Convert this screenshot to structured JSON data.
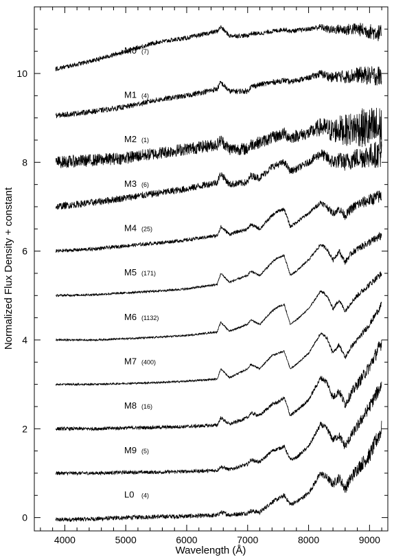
{
  "chart_data": {
    "type": "line",
    "title": "",
    "xlabel": "Wavelength (Å)",
    "ylabel": "Normalized Flux Density + constant",
    "xlim": [
      3500,
      9300
    ],
    "ylim": [
      -0.3,
      11.5
    ],
    "x_ticks": [
      4000,
      5000,
      6000,
      7000,
      8000,
      9000
    ],
    "y_ticks": [
      0,
      2,
      4,
      6,
      8,
      10
    ],
    "grid": false,
    "legend": "none",
    "line_color": "#000000",
    "series": [
      {
        "name": "L0",
        "count": "(4)",
        "offset": 0,
        "x": [
          3850,
          4500,
          5000,
          5500,
          6000,
          6500,
          6560,
          6700,
          7000,
          7050,
          7200,
          7400,
          7500,
          7600,
          7700,
          7800,
          8000,
          8200,
          8300,
          8400,
          8500,
          8600,
          8700,
          8800,
          9000,
          9200
        ],
        "values": [
          -0.05,
          -0.03,
          0.0,
          0.02,
          0.03,
          0.05,
          0.12,
          0.06,
          0.1,
          0.15,
          0.12,
          0.35,
          0.42,
          0.5,
          0.3,
          0.35,
          0.55,
          1.0,
          0.9,
          0.75,
          0.9,
          0.65,
          0.9,
          1.1,
          1.4,
          2.0
        ]
      },
      {
        "name": "M9",
        "count": "(5)",
        "offset": 1,
        "x": [
          3850,
          4500,
          5000,
          5500,
          6000,
          6500,
          6560,
          6700,
          7000,
          7050,
          7200,
          7400,
          7500,
          7600,
          7700,
          7800,
          8000,
          8200,
          8300,
          8400,
          8500,
          8600,
          8700,
          8800,
          9000,
          9200
        ],
        "values": [
          1.0,
          1.0,
          1.02,
          1.02,
          1.04,
          1.06,
          1.15,
          1.08,
          1.2,
          1.3,
          1.25,
          1.5,
          1.55,
          1.6,
          1.3,
          1.35,
          1.6,
          2.1,
          2.0,
          1.75,
          1.85,
          1.6,
          1.85,
          2.05,
          2.5,
          3.0
        ]
      },
      {
        "name": "M8",
        "count": "(16)",
        "offset": 2,
        "x": [
          3850,
          4500,
          5000,
          5500,
          6000,
          6500,
          6560,
          6700,
          7000,
          7050,
          7200,
          7400,
          7500,
          7600,
          7700,
          7800,
          8000,
          8200,
          8300,
          8400,
          8500,
          8600,
          8700,
          8800,
          9000,
          9200
        ],
        "values": [
          2.0,
          2.0,
          2.02,
          2.03,
          2.05,
          2.08,
          2.25,
          2.1,
          2.25,
          2.35,
          2.3,
          2.55,
          2.6,
          2.7,
          2.3,
          2.4,
          2.65,
          3.15,
          3.05,
          2.7,
          2.85,
          2.55,
          2.8,
          3.0,
          3.4,
          3.95
        ]
      },
      {
        "name": "M7",
        "count": "(400)",
        "offset": 3,
        "x": [
          3850,
          4500,
          5000,
          5500,
          6000,
          6500,
          6560,
          6700,
          7000,
          7050,
          7200,
          7400,
          7500,
          7600,
          7700,
          7800,
          8000,
          8200,
          8300,
          8400,
          8500,
          8600,
          8700,
          8800,
          9000,
          9200
        ],
        "values": [
          3.0,
          3.0,
          3.02,
          3.04,
          3.07,
          3.12,
          3.35,
          3.15,
          3.35,
          3.45,
          3.35,
          3.65,
          3.7,
          3.75,
          3.35,
          3.45,
          3.7,
          4.15,
          4.05,
          3.7,
          3.9,
          3.6,
          3.85,
          4.0,
          4.35,
          4.8
        ]
      },
      {
        "name": "M6",
        "count": "(1132)",
        "offset": 4,
        "x": [
          3850,
          4500,
          5000,
          5500,
          6000,
          6500,
          6560,
          6700,
          7000,
          7050,
          7200,
          7400,
          7500,
          7600,
          7700,
          7800,
          8000,
          8200,
          8300,
          8400,
          8500,
          8600,
          8700,
          8800,
          9000,
          9200
        ],
        "values": [
          4.0,
          4.0,
          4.03,
          4.06,
          4.1,
          4.18,
          4.4,
          4.2,
          4.35,
          4.45,
          4.35,
          4.65,
          4.75,
          4.8,
          4.35,
          4.45,
          4.7,
          5.1,
          5.0,
          4.7,
          4.9,
          4.65,
          4.85,
          5.0,
          5.25,
          5.5
        ]
      },
      {
        "name": "M5",
        "count": "(171)",
        "offset": 5,
        "x": [
          3850,
          4500,
          5000,
          5500,
          6000,
          6500,
          6560,
          6700,
          7000,
          7050,
          7200,
          7400,
          7500,
          7600,
          7700,
          7800,
          8000,
          8200,
          8300,
          8400,
          8500,
          8600,
          8700,
          8800,
          9000,
          9200
        ],
        "values": [
          5.0,
          5.02,
          5.06,
          5.1,
          5.15,
          5.25,
          5.5,
          5.3,
          5.45,
          5.55,
          5.45,
          5.75,
          5.85,
          5.9,
          5.45,
          5.55,
          5.8,
          6.15,
          6.05,
          5.8,
          6.0,
          5.75,
          5.95,
          6.05,
          6.2,
          6.35
        ]
      },
      {
        "name": "M4",
        "count": "(25)",
        "offset": 6,
        "x": [
          3850,
          4500,
          5000,
          5500,
          6000,
          6500,
          6560,
          6700,
          7000,
          7050,
          7200,
          7400,
          7500,
          7600,
          7700,
          7800,
          8000,
          8200,
          8300,
          8400,
          8500,
          8600,
          8700,
          8800,
          9000,
          9200
        ],
        "values": [
          6.0,
          6.05,
          6.12,
          6.18,
          6.25,
          6.35,
          6.55,
          6.38,
          6.5,
          6.6,
          6.5,
          6.8,
          6.9,
          6.95,
          6.55,
          6.65,
          6.85,
          7.1,
          7.0,
          6.85,
          6.95,
          6.8,
          6.95,
          7.05,
          7.15,
          7.25
        ]
      },
      {
        "name": "M3",
        "count": "(6)",
        "offset": 7,
        "x": [
          3850,
          4500,
          5000,
          5500,
          6000,
          6500,
          6560,
          6700,
          7000,
          7050,
          7200,
          7400,
          7500,
          7600,
          7700,
          7800,
          8000,
          8200,
          8300,
          8400,
          8500,
          8600,
          8700,
          8800,
          9000,
          9200
        ],
        "values": [
          7.0,
          7.1,
          7.2,
          7.3,
          7.4,
          7.55,
          7.75,
          7.5,
          7.55,
          7.7,
          7.65,
          7.9,
          7.95,
          8.0,
          7.8,
          7.85,
          8.0,
          8.2,
          8.1,
          8.0,
          8.05,
          8.0,
          8.05,
          8.1,
          8.15,
          8.2
        ]
      },
      {
        "name": "M2",
        "count": "(1)",
        "offset": 8,
        "x": [
          3850,
          4500,
          5000,
          5500,
          6000,
          6500,
          6560,
          6700,
          7000,
          7050,
          7200,
          7400,
          7500,
          7600,
          7700,
          7800,
          8000,
          8200,
          8300,
          8400,
          8500,
          8600,
          8700,
          8800,
          9000,
          9200
        ],
        "values": [
          8.0,
          8.05,
          8.1,
          8.2,
          8.3,
          8.4,
          8.5,
          8.3,
          8.3,
          8.4,
          8.45,
          8.55,
          8.6,
          8.65,
          8.55,
          8.6,
          8.65,
          8.8,
          8.75,
          8.7,
          8.75,
          8.72,
          8.75,
          8.78,
          8.75,
          8.75
        ]
      },
      {
        "name": "M1",
        "count": "(4)",
        "offset": 9,
        "x": [
          3850,
          4500,
          5000,
          5500,
          6000,
          6500,
          6560,
          6700,
          7000,
          7050,
          7200,
          7400,
          7500,
          7600,
          7700,
          7800,
          8000,
          8200,
          8300,
          8400,
          8500,
          8600,
          8700,
          8800,
          9000,
          9200
        ],
        "values": [
          9.05,
          9.15,
          9.25,
          9.4,
          9.5,
          9.65,
          9.8,
          9.6,
          9.6,
          9.7,
          9.75,
          9.8,
          9.82,
          9.85,
          9.8,
          9.85,
          9.9,
          10.0,
          9.95,
          9.9,
          9.95,
          9.92,
          9.95,
          9.97,
          9.95,
          9.95
        ]
      },
      {
        "name": "M0",
        "count": "(7)",
        "offset": 10,
        "x": [
          3850,
          4500,
          5000,
          5500,
          6000,
          6500,
          6560,
          6700,
          7000,
          7050,
          7200,
          7400,
          7500,
          7600,
          7700,
          7800,
          8000,
          8200,
          8300,
          8400,
          8500,
          8600,
          8700,
          8800,
          9000,
          9200
        ],
        "values": [
          10.1,
          10.3,
          10.5,
          10.7,
          10.8,
          10.95,
          11.05,
          10.85,
          10.85,
          10.9,
          10.9,
          10.95,
          10.97,
          11.0,
          10.95,
          10.97,
          11.0,
          11.05,
          11.0,
          10.98,
          11.0,
          10.98,
          11.0,
          11.0,
          10.95,
          10.9
        ]
      }
    ]
  }
}
